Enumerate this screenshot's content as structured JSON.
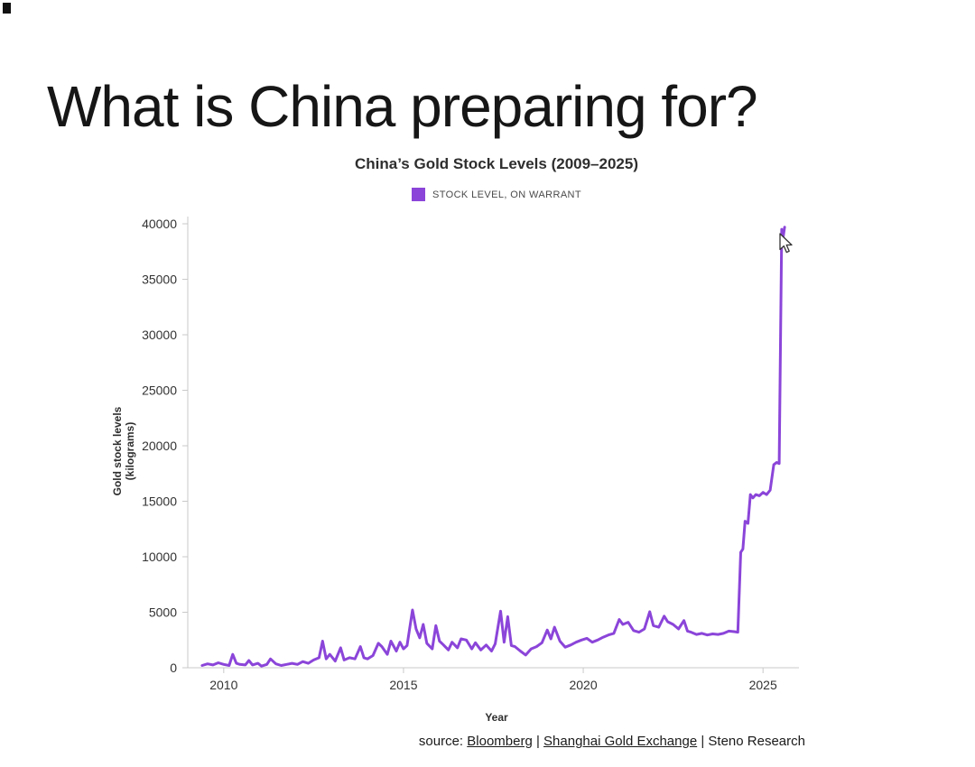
{
  "page": {
    "title": "What is China preparing for?"
  },
  "chart": {
    "title": "China’s Gold Stock Levels (2009–2025)",
    "legend_label": "STOCK LEVEL, ON WARRANT",
    "y_axis_label": "Gold stock levels (kilograms)",
    "x_axis_label": "Year",
    "line_color": "#8b45d9"
  },
  "source": {
    "prefix": "source: ",
    "link1": "Bloomberg",
    "sep1": " | ",
    "link2": "Shanghai Gold Exchange",
    "sep2": " | ",
    "rest": "Steno Research"
  },
  "chart_data": {
    "type": "line",
    "title": "China’s Gold Stock Levels (2009–2025)",
    "xlabel": "Year",
    "ylabel": "Gold stock levels (kilograms)",
    "xlim": [
      2009,
      2026
    ],
    "ylim": [
      0,
      40000
    ],
    "xticks": [
      2010,
      2015,
      2020,
      2025
    ],
    "yticks": [
      0,
      5000,
      10000,
      15000,
      20000,
      25000,
      30000,
      35000,
      40000
    ],
    "grid": false,
    "legend_position": "top",
    "series": [
      {
        "name": "STOCK LEVEL, ON WARRANT",
        "color": "#8b45d9",
        "points": [
          [
            2009.4,
            200
          ],
          [
            2009.55,
            350
          ],
          [
            2009.7,
            250
          ],
          [
            2009.85,
            450
          ],
          [
            2010.0,
            300
          ],
          [
            2010.15,
            200
          ],
          [
            2010.25,
            1200
          ],
          [
            2010.35,
            400
          ],
          [
            2010.45,
            300
          ],
          [
            2010.6,
            250
          ],
          [
            2010.7,
            650
          ],
          [
            2010.8,
            250
          ],
          [
            2010.95,
            400
          ],
          [
            2011.05,
            150
          ],
          [
            2011.2,
            300
          ],
          [
            2011.3,
            800
          ],
          [
            2011.45,
            350
          ],
          [
            2011.6,
            200
          ],
          [
            2011.75,
            300
          ],
          [
            2011.9,
            400
          ],
          [
            2012.05,
            300
          ],
          [
            2012.2,
            550
          ],
          [
            2012.35,
            400
          ],
          [
            2012.5,
            700
          ],
          [
            2012.65,
            900
          ],
          [
            2012.75,
            2400
          ],
          [
            2012.85,
            800
          ],
          [
            2012.95,
            1200
          ],
          [
            2013.1,
            600
          ],
          [
            2013.25,
            1800
          ],
          [
            2013.35,
            700
          ],
          [
            2013.5,
            900
          ],
          [
            2013.65,
            800
          ],
          [
            2013.8,
            1900
          ],
          [
            2013.9,
            900
          ],
          [
            2014.0,
            800
          ],
          [
            2014.15,
            1100
          ],
          [
            2014.3,
            2200
          ],
          [
            2014.4,
            1900
          ],
          [
            2014.55,
            1200
          ],
          [
            2014.65,
            2400
          ],
          [
            2014.8,
            1500
          ],
          [
            2014.9,
            2300
          ],
          [
            2015.0,
            1700
          ],
          [
            2015.1,
            2000
          ],
          [
            2015.25,
            5200
          ],
          [
            2015.35,
            3500
          ],
          [
            2015.45,
            2700
          ],
          [
            2015.55,
            3900
          ],
          [
            2015.65,
            2200
          ],
          [
            2015.8,
            1700
          ],
          [
            2015.9,
            3800
          ],
          [
            2016.0,
            2400
          ],
          [
            2016.1,
            2100
          ],
          [
            2016.25,
            1600
          ],
          [
            2016.35,
            2300
          ],
          [
            2016.5,
            1800
          ],
          [
            2016.6,
            2600
          ],
          [
            2016.75,
            2500
          ],
          [
            2016.9,
            1700
          ],
          [
            2017.0,
            2250
          ],
          [
            2017.15,
            1600
          ],
          [
            2017.3,
            2050
          ],
          [
            2017.45,
            1500
          ],
          [
            2017.55,
            2150
          ],
          [
            2017.7,
            5100
          ],
          [
            2017.8,
            2300
          ],
          [
            2017.9,
            4600
          ],
          [
            2018.0,
            2000
          ],
          [
            2018.1,
            1900
          ],
          [
            2018.25,
            1500
          ],
          [
            2018.4,
            1150
          ],
          [
            2018.55,
            1700
          ],
          [
            2018.7,
            1900
          ],
          [
            2018.85,
            2250
          ],
          [
            2019.0,
            3400
          ],
          [
            2019.1,
            2600
          ],
          [
            2019.2,
            3650
          ],
          [
            2019.35,
            2400
          ],
          [
            2019.5,
            1850
          ],
          [
            2019.65,
            2050
          ],
          [
            2019.8,
            2300
          ],
          [
            2019.95,
            2500
          ],
          [
            2020.1,
            2650
          ],
          [
            2020.25,
            2300
          ],
          [
            2020.4,
            2500
          ],
          [
            2020.55,
            2750
          ],
          [
            2020.7,
            2950
          ],
          [
            2020.85,
            3100
          ],
          [
            2021.0,
            4350
          ],
          [
            2021.1,
            3900
          ],
          [
            2021.25,
            4100
          ],
          [
            2021.4,
            3350
          ],
          [
            2021.55,
            3200
          ],
          [
            2021.7,
            3500
          ],
          [
            2021.85,
            5050
          ],
          [
            2021.95,
            3800
          ],
          [
            2022.1,
            3650
          ],
          [
            2022.25,
            4650
          ],
          [
            2022.35,
            4150
          ],
          [
            2022.5,
            3900
          ],
          [
            2022.65,
            3500
          ],
          [
            2022.8,
            4250
          ],
          [
            2022.9,
            3300
          ],
          [
            2023.0,
            3200
          ],
          [
            2023.15,
            3000
          ],
          [
            2023.3,
            3100
          ],
          [
            2023.45,
            2950
          ],
          [
            2023.6,
            3050
          ],
          [
            2023.75,
            3000
          ],
          [
            2023.9,
            3100
          ],
          [
            2024.05,
            3300
          ],
          [
            2024.2,
            3250
          ],
          [
            2024.3,
            3200
          ],
          [
            2024.38,
            10400
          ],
          [
            2024.44,
            10700
          ],
          [
            2024.5,
            13200
          ],
          [
            2024.58,
            13000
          ],
          [
            2024.65,
            15600
          ],
          [
            2024.72,
            15300
          ],
          [
            2024.8,
            15600
          ],
          [
            2024.9,
            15500
          ],
          [
            2025.0,
            15800
          ],
          [
            2025.1,
            15600
          ],
          [
            2025.2,
            16000
          ],
          [
            2025.3,
            18300
          ],
          [
            2025.38,
            18500
          ],
          [
            2025.45,
            18400
          ],
          [
            2025.52,
            39500
          ],
          [
            2025.56,
            38800
          ],
          [
            2025.6,
            39700
          ]
        ]
      }
    ]
  }
}
